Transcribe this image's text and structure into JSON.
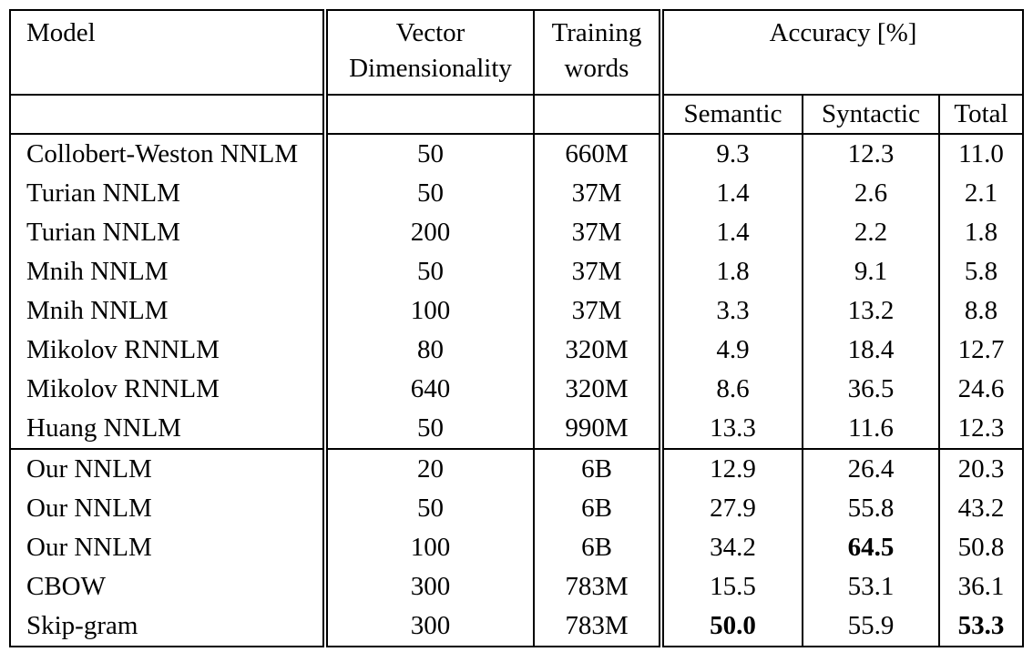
{
  "table": {
    "title_semantic": "Model comparison table",
    "columns": {
      "model": "Model",
      "vector_line1": "Vector",
      "vector_line2": "Dimensionality",
      "training_line1": "Training",
      "training_line2": "words",
      "accuracy_group": "Accuracy [%]",
      "semantic": "Semantic",
      "syntactic": "Syntactic",
      "total": "Total"
    },
    "groups": [
      {
        "rows": [
          {
            "model": "Collobert-Weston NNLM",
            "dim": "50",
            "words": "660M",
            "semantic": "9.3",
            "syntactic": "12.3",
            "total": "11.0",
            "bold": []
          },
          {
            "model": "Turian NNLM",
            "dim": "50",
            "words": "37M",
            "semantic": "1.4",
            "syntactic": "2.6",
            "total": "2.1",
            "bold": []
          },
          {
            "model": "Turian NNLM",
            "dim": "200",
            "words": "37M",
            "semantic": "1.4",
            "syntactic": "2.2",
            "total": "1.8",
            "bold": []
          },
          {
            "model": "Mnih NNLM",
            "dim": "50",
            "words": "37M",
            "semantic": "1.8",
            "syntactic": "9.1",
            "total": "5.8",
            "bold": []
          },
          {
            "model": "Mnih NNLM",
            "dim": "100",
            "words": "37M",
            "semantic": "3.3",
            "syntactic": "13.2",
            "total": "8.8",
            "bold": []
          },
          {
            "model": "Mikolov RNNLM",
            "dim": "80",
            "words": "320M",
            "semantic": "4.9",
            "syntactic": "18.4",
            "total": "12.7",
            "bold": []
          },
          {
            "model": "Mikolov RNNLM",
            "dim": "640",
            "words": "320M",
            "semantic": "8.6",
            "syntactic": "36.5",
            "total": "24.6",
            "bold": []
          },
          {
            "model": "Huang NNLM",
            "dim": "50",
            "words": "990M",
            "semantic": "13.3",
            "syntactic": "11.6",
            "total": "12.3",
            "bold": []
          }
        ]
      },
      {
        "rows": [
          {
            "model": "Our NNLM",
            "dim": "20",
            "words": "6B",
            "semantic": "12.9",
            "syntactic": "26.4",
            "total": "20.3",
            "bold": []
          },
          {
            "model": "Our NNLM",
            "dim": "50",
            "words": "6B",
            "semantic": "27.9",
            "syntactic": "55.8",
            "total": "43.2",
            "bold": []
          },
          {
            "model": "Our NNLM",
            "dim": "100",
            "words": "6B",
            "semantic": "34.2",
            "syntactic": "64.5",
            "total": "50.8",
            "bold": [
              "syntactic"
            ]
          },
          {
            "model": "CBOW",
            "dim": "300",
            "words": "783M",
            "semantic": "15.5",
            "syntactic": "53.1",
            "total": "36.1",
            "bold": []
          },
          {
            "model": "Skip-gram",
            "dim": "300",
            "words": "783M",
            "semantic": "50.0",
            "syntactic": "55.9",
            "total": "53.3",
            "bold": [
              "semantic",
              "total"
            ]
          }
        ]
      }
    ]
  },
  "colors": {
    "background": "#ffffff",
    "text": "#000000",
    "border": "#000000"
  }
}
